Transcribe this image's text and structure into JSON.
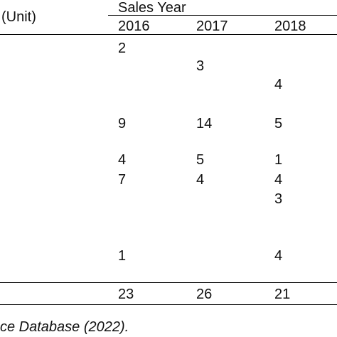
{
  "table": {
    "stub_header": "(Unit)",
    "group_header": "Sales Year",
    "years": [
      "2016",
      "2017",
      "2018"
    ],
    "rows": [
      [
        "2",
        "",
        ""
      ],
      [
        "",
        "3",
        ""
      ],
      [
        "",
        "",
        "4"
      ],
      [
        "9",
        "14",
        "5"
      ],
      [
        "4",
        "5",
        "1"
      ],
      [
        "7",
        "4",
        "4"
      ],
      [
        "",
        "",
        "3"
      ],
      [
        "1",
        "",
        "4"
      ]
    ],
    "totals": [
      "23",
      "26",
      "21"
    ]
  },
  "source_note": "ce Database (2022)."
}
